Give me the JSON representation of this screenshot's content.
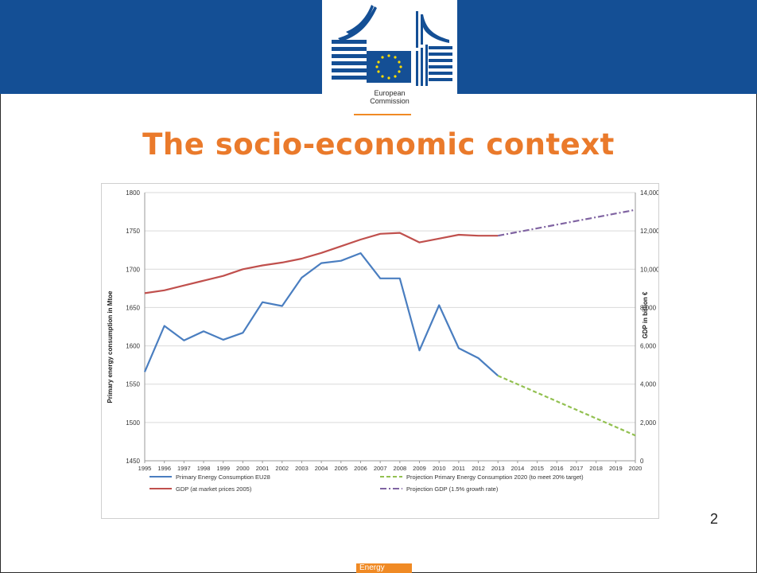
{
  "header": {
    "logo_line1": "European",
    "logo_line2": "Commission"
  },
  "slide": {
    "title": "The socio-economic context",
    "page_number": "2",
    "footer_label": "Energy"
  },
  "colors": {
    "banner": "#144f95",
    "title": "#ea7a2b",
    "accent": "#f08a24",
    "energy": "#4a7ec0",
    "gdp": "#c0504d",
    "proj_energy": "#92c050",
    "proj_gdp": "#8064a2"
  },
  "chart_data": {
    "type": "line",
    "x": [
      "1995",
      "1996",
      "1997",
      "1998",
      "1999",
      "2000",
      "2001",
      "2002",
      "2003",
      "2004",
      "2005",
      "2006",
      "2007",
      "2008",
      "2009",
      "2010",
      "2011",
      "2012",
      "2013",
      "2014",
      "2015",
      "2016",
      "2017",
      "2018",
      "2019",
      "2020"
    ],
    "ylabel_left": "Primary energy consumption in Mtoe",
    "ylabel_right": "GDP in billion €",
    "ylim_left": [
      1450,
      1800
    ],
    "ylim_right": [
      0,
      14000
    ],
    "yticks_left": [
      "1450",
      "1500",
      "1550",
      "1600",
      "1650",
      "1700",
      "1750",
      "1800"
    ],
    "yticks_right": [
      "0",
      "2,000",
      "4,000",
      "6,000",
      "8,000",
      "10,000",
      "12,000",
      "14,000"
    ],
    "grid": "horizontal",
    "legend_position": "bottom",
    "series": [
      {
        "name": "Primary Energy Consumption EU28",
        "axis": "left",
        "style": "solid",
        "color": "#4a7ec0",
        "x": [
          "1995",
          "1996",
          "1997",
          "1998",
          "1999",
          "2000",
          "2001",
          "2002",
          "2003",
          "2004",
          "2005",
          "2006",
          "2007",
          "2008",
          "2009",
          "2010",
          "2011",
          "2012",
          "2013"
        ],
        "values": [
          1566,
          1626,
          1607,
          1619,
          1608,
          1617,
          1657,
          1652,
          1689,
          1708,
          1711,
          1721,
          1688,
          1688,
          1594,
          1653,
          1597,
          1584,
          1561
        ]
      },
      {
        "name": "GDP (at market prices 2005)",
        "axis": "right",
        "style": "solid",
        "color": "#c0504d",
        "x": [
          "1995",
          "1996",
          "1997",
          "1998",
          "1999",
          "2000",
          "2001",
          "2002",
          "2003",
          "2004",
          "2005",
          "2006",
          "2007",
          "2008",
          "2009",
          "2010",
          "2011",
          "2012",
          "2013"
        ],
        "values": [
          8750,
          8900,
          9150,
          9400,
          9650,
          10000,
          10200,
          10350,
          10550,
          10850,
          11200,
          11550,
          11850,
          11900,
          11400,
          11600,
          11800,
          11750,
          11750
        ]
      },
      {
        "name": "Projection Primary Energy Consumption 2020 (to meet 20% target)",
        "axis": "left",
        "style": "dashed",
        "color": "#92c050",
        "x": [
          "2013",
          "2020"
        ],
        "values": [
          1561,
          1483
        ]
      },
      {
        "name": "Projection GDP (1.5% growth rate)",
        "axis": "right",
        "style": "dashdot",
        "color": "#8064a2",
        "x": [
          "2013",
          "2020"
        ],
        "values": [
          11750,
          13100
        ]
      }
    ]
  }
}
